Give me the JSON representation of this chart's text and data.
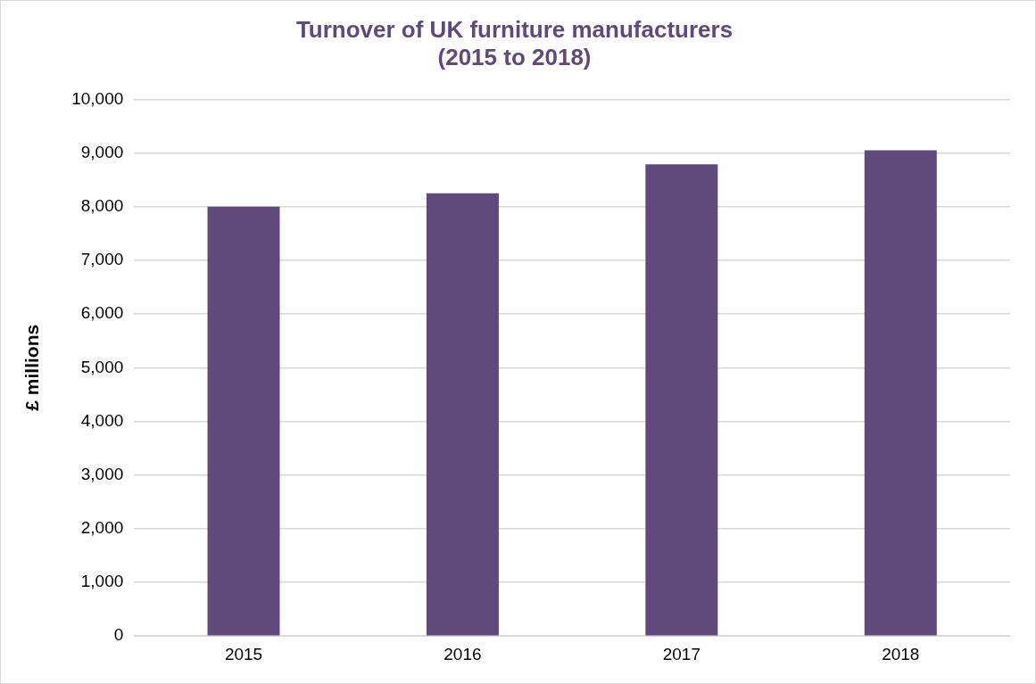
{
  "chart_data": {
    "type": "bar",
    "title": "Turnover of UK furniture manufacturers\n(2015 to 2018)",
    "ylabel": "£ millions",
    "categories": [
      "2015",
      "2016",
      "2017",
      "2018"
    ],
    "values": [
      8000,
      8250,
      8790,
      9050
    ],
    "color": "#604a7b",
    "ylim": [
      0,
      10000
    ],
    "yticks": [
      0,
      {
        "value": 1000,
        "label": "1,000"
      },
      {
        "value": 2000,
        "label": "2,000"
      },
      {
        "value": 3000,
        "label": "3,000"
      },
      {
        "value": 4000,
        "label": "4,000"
      },
      {
        "value": 5000,
        "label": "5,000"
      },
      {
        "value": 6000,
        "label": "6,000"
      },
      {
        "value": 7000,
        "label": "7,000"
      },
      {
        "value": 8000,
        "label": "8,000"
      },
      {
        "value": 9000,
        "label": "9,000"
      },
      {
        "value": 10000,
        "label": "10,000"
      }
    ],
    "grid": "y",
    "legend": false
  }
}
